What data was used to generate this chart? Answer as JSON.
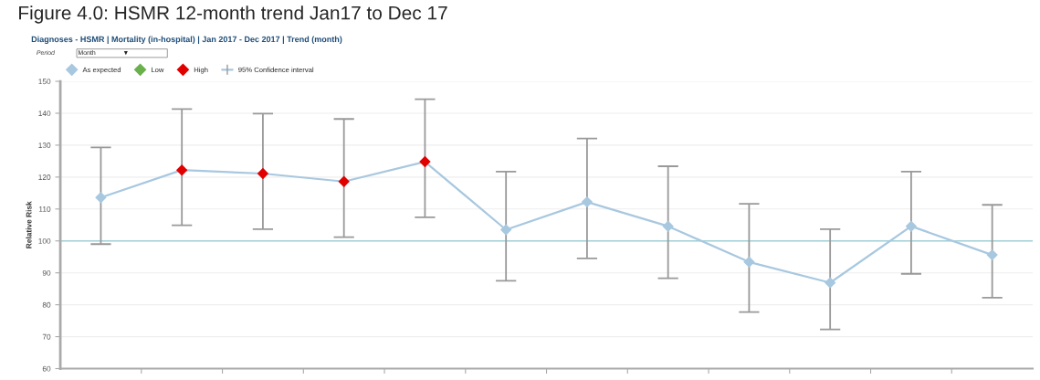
{
  "chart_data": {
    "type": "line",
    "title": "Figure 4.0: HSMR 12-month trend Jan17 to Dec 17",
    "subtitle": "Diagnoses - HSMR | Mortality (in-hospital) | Jan 2017 - Dec 2017 | Trend (month)",
    "ylabel": "Relative Risk",
    "annotations": [
      "Period",
      "Month",
      "▼"
    ],
    "categories": [
      null,
      null,
      null,
      null,
      null,
      null,
      null,
      null,
      null,
      null,
      null,
      null
    ],
    "series": [
      {
        "name": "As expected",
        "type": "scatter",
        "marker": "diamond",
        "color": "#a8c8e0",
        "values": [
          113.6,
          null,
          null,
          null,
          null,
          103.5,
          112.2,
          104.6,
          93.4,
          86.9,
          104.6,
          95.6
        ]
      },
      {
        "name": "Low",
        "type": "scatter",
        "marker": "diamond",
        "color": "#6ab04c",
        "values": [
          null,
          null,
          null,
          null,
          null,
          null,
          null,
          null,
          null,
          null,
          null,
          null
        ]
      },
      {
        "name": "High",
        "type": "scatter",
        "marker": "diamond",
        "color": "#e00000",
        "values": [
          null,
          122.2,
          121.1,
          118.6,
          124.8,
          null,
          null,
          null,
          null,
          null,
          null,
          null
        ]
      },
      {
        "name": "95% Confidence interval",
        "color": "#a8c8e0",
        "values": [
          113.6,
          122.2,
          121.1,
          118.6,
          124.8,
          103.5,
          112.2,
          104.6,
          93.4,
          86.9,
          104.6,
          95.6
        ],
        "errors": [
          [
            99.0,
            129.3
          ],
          [
            104.9,
            141.3
          ],
          [
            103.7,
            139.9
          ],
          [
            101.2,
            138.2
          ],
          [
            107.4,
            144.4
          ],
          [
            87.5,
            121.7
          ],
          [
            94.5,
            132.1
          ],
          [
            88.3,
            123.4
          ],
          [
            77.7,
            111.6
          ],
          [
            72.3,
            103.7
          ],
          [
            89.7,
            121.7
          ],
          [
            82.2,
            111.3
          ]
        ]
      }
    ],
    "ylim": [
      60,
      150
    ],
    "yticks": [
      60,
      70,
      80,
      90,
      100,
      110,
      120,
      130,
      140,
      150
    ],
    "ref_lines": [
      {
        "axis": "y",
        "value": 100,
        "color": "#a0d0d8"
      }
    ],
    "grid": "y",
    "legend": "top left"
  }
}
